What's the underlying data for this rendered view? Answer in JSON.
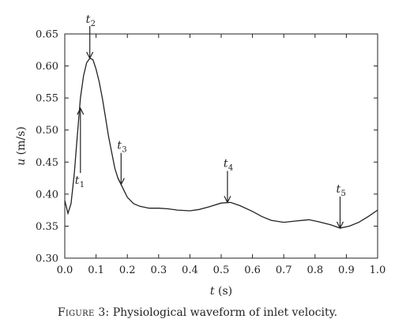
{
  "chart_data": {
    "type": "line",
    "xlabel_var": "t",
    "xlabel_unit": "(s)",
    "ylabel_var": "u",
    "ylabel_unit": "(m/s)",
    "xlim": [
      0.0,
      1.0
    ],
    "ylim": [
      0.3,
      0.65
    ],
    "x_ticks": [
      "0.0",
      "0.1",
      "0.2",
      "0.3",
      "0.4",
      "0.5",
      "0.6",
      "0.7",
      "0.8",
      "0.9",
      "1.0"
    ],
    "y_ticks": [
      "0.30",
      "0.35",
      "0.40",
      "0.45",
      "0.50",
      "0.55",
      "0.60",
      "0.65"
    ],
    "series": [
      {
        "x": [
          0.0,
          0.01,
          0.02,
          0.03,
          0.04,
          0.05,
          0.06,
          0.07,
          0.08,
          0.09,
          0.1,
          0.11,
          0.12,
          0.13,
          0.14,
          0.15,
          0.16,
          0.17,
          0.18,
          0.19,
          0.2,
          0.22,
          0.24,
          0.27,
          0.3,
          0.33,
          0.36,
          0.4,
          0.43,
          0.46,
          0.5,
          0.53,
          0.56,
          0.6,
          0.63,
          0.66,
          0.7,
          0.74,
          0.78,
          0.81,
          0.85,
          0.88,
          0.91,
          0.94,
          0.97,
          1.0
        ],
        "y": [
          0.39,
          0.37,
          0.385,
          0.43,
          0.49,
          0.55,
          0.585,
          0.605,
          0.612,
          0.61,
          0.595,
          0.575,
          0.55,
          0.52,
          0.49,
          0.465,
          0.44,
          0.425,
          0.415,
          0.405,
          0.395,
          0.385,
          0.381,
          0.378,
          0.378,
          0.377,
          0.375,
          0.374,
          0.376,
          0.38,
          0.386,
          0.387,
          0.382,
          0.373,
          0.365,
          0.359,
          0.356,
          0.358,
          0.36,
          0.357,
          0.352,
          0.347,
          0.35,
          0.356,
          0.365,
          0.375
        ]
      }
    ],
    "annotations": [
      {
        "main": "t",
        "sub": "1",
        "x": 0.05,
        "y": 0.534,
        "dir": "up"
      },
      {
        "main": "t",
        "sub": "2",
        "x": 0.08,
        "y": 0.612,
        "dir": "down"
      },
      {
        "main": "t",
        "sub": "3",
        "x": 0.18,
        "y": 0.415,
        "dir": "down"
      },
      {
        "main": "t",
        "sub": "4",
        "x": 0.52,
        "y": 0.387,
        "dir": "down"
      },
      {
        "main": "t",
        "sub": "5",
        "x": 0.88,
        "y": 0.347,
        "dir": "down"
      }
    ]
  },
  "caption": {
    "label": "Figure 3",
    "text": ": Physiological waveform of inlet velocity."
  }
}
